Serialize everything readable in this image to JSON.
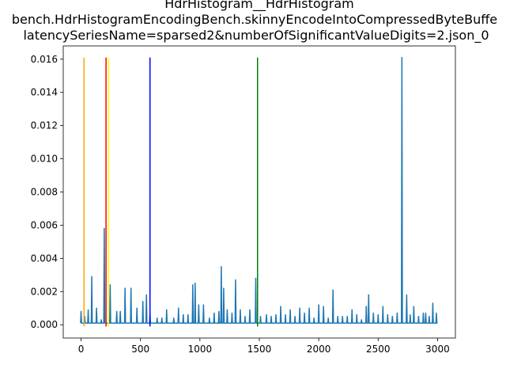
{
  "chart_data": {
    "type": "line",
    "title_lines": [
      "HdrHistogram__HdrHistogram",
      "bench.HdrHistogramEncodingBench.skinnyEncodeIntoCompressedByteBuffe",
      "latencySeriesName=sparsed2&numberOfSignificantValueDigits=2.json_0"
    ],
    "xlabel": "",
    "ylabel": "",
    "xlim": [
      -150,
      3150
    ],
    "ylim": [
      -0.0008,
      0.0168
    ],
    "x_ticks": [
      0,
      500,
      1000,
      1500,
      2000,
      2500,
      3000
    ],
    "x_tick_labels": [
      "0",
      "500",
      "1000",
      "1500",
      "2000",
      "2500",
      "3000"
    ],
    "y_ticks": [
      0.0,
      0.002,
      0.004,
      0.006,
      0.008,
      0.01,
      0.012,
      0.014,
      0.016
    ],
    "y_tick_labels": [
      "0.000",
      "0.002",
      "0.004",
      "0.006",
      "0.008",
      "0.010",
      "0.012",
      "0.014",
      "0.016"
    ],
    "grid": false,
    "series": [
      {
        "color": "#1f77b4",
        "baseline": 0.0001,
        "peaks": [
          [
            0,
            0.0008
          ],
          [
            30,
            0.0005
          ],
          [
            60,
            0.0009
          ],
          [
            90,
            0.0029
          ],
          [
            130,
            0.001
          ],
          [
            170,
            0.0003
          ],
          [
            195,
            0.0058
          ],
          [
            245,
            0.0024
          ],
          [
            300,
            0.0008
          ],
          [
            330,
            0.0008
          ],
          [
            370,
            0.0022
          ],
          [
            420,
            0.0022
          ],
          [
            470,
            0.001
          ],
          [
            520,
            0.0014
          ],
          [
            550,
            0.0018
          ],
          [
            580,
            0.0007
          ],
          [
            640,
            0.0004
          ],
          [
            680,
            0.0004
          ],
          [
            720,
            0.0009
          ],
          [
            780,
            0.0004
          ],
          [
            820,
            0.001
          ],
          [
            860,
            0.0006
          ],
          [
            900,
            0.0006
          ],
          [
            940,
            0.0024
          ],
          [
            960,
            0.0025
          ],
          [
            990,
            0.0012
          ],
          [
            1030,
            0.0012
          ],
          [
            1080,
            0.0004
          ],
          [
            1120,
            0.0007
          ],
          [
            1160,
            0.0008
          ],
          [
            1180,
            0.0035
          ],
          [
            1200,
            0.0022
          ],
          [
            1230,
            0.0009
          ],
          [
            1270,
            0.0007
          ],
          [
            1300,
            0.0027
          ],
          [
            1340,
            0.0009
          ],
          [
            1380,
            0.0005
          ],
          [
            1420,
            0.0009
          ],
          [
            1470,
            0.0028
          ],
          [
            1510,
            0.0005
          ],
          [
            1560,
            0.0006
          ],
          [
            1600,
            0.0005
          ],
          [
            1640,
            0.0006
          ],
          [
            1680,
            0.0011
          ],
          [
            1720,
            0.0006
          ],
          [
            1760,
            0.0009
          ],
          [
            1800,
            0.0005
          ],
          [
            1840,
            0.001
          ],
          [
            1880,
            0.0007
          ],
          [
            1920,
            0.001
          ],
          [
            1960,
            0.0004
          ],
          [
            2000,
            0.0012
          ],
          [
            2040,
            0.0011
          ],
          [
            2080,
            0.0004
          ],
          [
            2120,
            0.0021
          ],
          [
            2160,
            0.0005
          ],
          [
            2200,
            0.0005
          ],
          [
            2240,
            0.0005
          ],
          [
            2280,
            0.0009
          ],
          [
            2320,
            0.0006
          ],
          [
            2360,
            0.0003
          ],
          [
            2400,
            0.0011
          ],
          [
            2420,
            0.0018
          ],
          [
            2460,
            0.0007
          ],
          [
            2500,
            0.0006
          ],
          [
            2540,
            0.0011
          ],
          [
            2580,
            0.0006
          ],
          [
            2620,
            0.0005
          ],
          [
            2660,
            0.0007
          ],
          [
            2700,
            0.0161
          ],
          [
            2740,
            0.0018
          ],
          [
            2770,
            0.0006
          ],
          [
            2800,
            0.0011
          ],
          [
            2840,
            0.0005
          ],
          [
            2880,
            0.0007
          ],
          [
            2900,
            0.0007
          ],
          [
            2930,
            0.0005
          ],
          [
            2960,
            0.0013
          ],
          [
            2990,
            0.0007
          ]
        ]
      }
    ],
    "vlines": [
      {
        "x": 25,
        "color": "#ffa500"
      },
      {
        "x": 210,
        "color": "#ff0000"
      },
      {
        "x": 230,
        "color": "#ffff00"
      },
      {
        "x": 580,
        "color": "#0000ff"
      },
      {
        "x": 1485,
        "color": "#008000"
      }
    ],
    "vline_top": 0.0161
  }
}
